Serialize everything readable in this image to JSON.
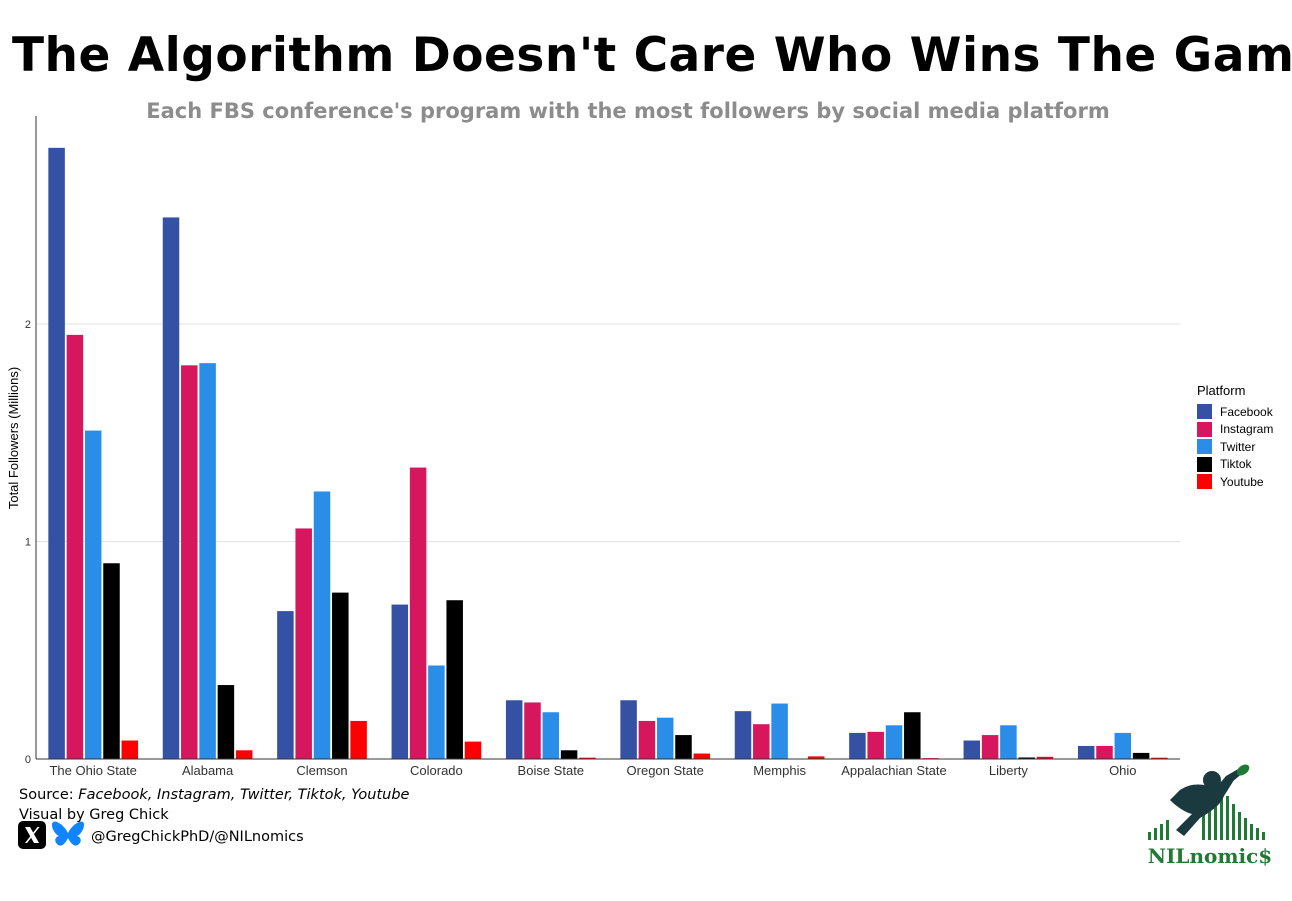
{
  "title": "The Algorithm Doesn't Care Who Wins The Game",
  "subtitle": "Each FBS conference's program with the most followers by social media platform",
  "chart_data": {
    "type": "bar",
    "ylabel": "Total Followers (Millions)",
    "xlabel": "",
    "ylim": [
      0,
      2.9
    ],
    "yticks": [
      0,
      1,
      2
    ],
    "grid": true,
    "legend_position": "right",
    "legend_title": "Platform",
    "categories": [
      "The Ohio State",
      "Alabama",
      "Clemson",
      "Colorado",
      "Boise State",
      "Oregon State",
      "Memphis",
      "Appalachian State",
      "Liberty",
      "Ohio"
    ],
    "series": [
      {
        "name": "Facebook",
        "color": "#3551a4",
        "values": [
          2.81,
          2.49,
          0.68,
          0.71,
          0.27,
          0.27,
          0.22,
          0.12,
          0.085,
          0.06
        ]
      },
      {
        "name": "Instagram",
        "color": "#d6175d",
        "values": [
          1.95,
          1.81,
          1.06,
          1.34,
          0.26,
          0.175,
          0.16,
          0.125,
          0.11,
          0.06
        ]
      },
      {
        "name": "Twitter",
        "color": "#2a8de8",
        "values": [
          1.51,
          1.82,
          1.23,
          0.43,
          0.215,
          0.19,
          0.255,
          0.155,
          0.155,
          0.12
        ]
      },
      {
        "name": "Tiktok",
        "color": "#000000",
        "values": [
          0.9,
          0.34,
          0.765,
          0.73,
          0.04,
          0.11,
          0.0,
          0.215,
          0.007,
          0.028
        ]
      },
      {
        "name": "Youtube",
        "color": "#ff0000",
        "values": [
          0.085,
          0.04,
          0.175,
          0.08,
          0.006,
          0.025,
          0.012,
          0.004,
          0.01,
          0.006
        ]
      }
    ]
  },
  "caption": {
    "source_label": "Source: ",
    "source_text": "Facebook, Instagram, Twitter, Tiktok, Youtube",
    "visual_by": "Visual by Greg Chick",
    "handle": "@GregChickPhD/@NILnomics"
  },
  "logo": {
    "brand": "NILnomic$",
    "icon": "nilnomics-logo"
  }
}
